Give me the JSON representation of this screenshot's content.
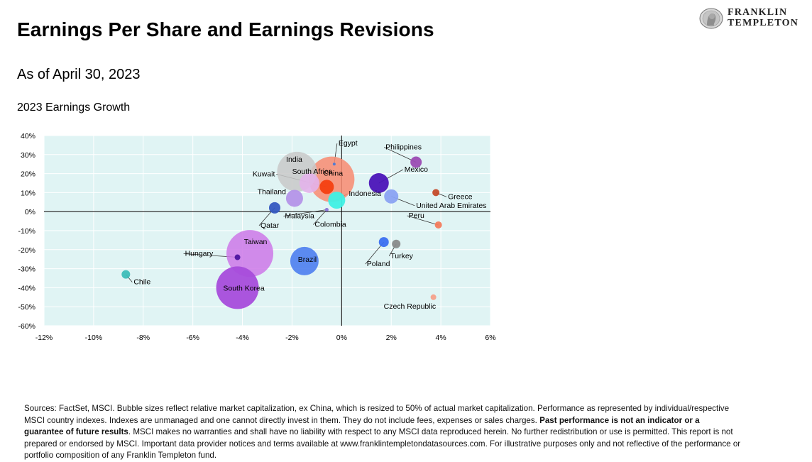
{
  "header": {
    "title": "Earnings Per Share and Earnings Revisions",
    "subtitle": "As of April 30, 2023",
    "logo_line1": "FRANKLIN",
    "logo_line2": "TEMPLETON"
  },
  "chart_data": {
    "type": "scatter",
    "title": "2023 Earnings Growth",
    "xlim": [
      -12,
      6
    ],
    "ylim": [
      -60,
      40
    ],
    "x_ticks": [
      "-12%",
      "-10%",
      "-8%",
      "-6%",
      "-4%",
      "-2%",
      "0%",
      "2%",
      "4%",
      "6%"
    ],
    "y_ticks": [
      "40%",
      "30%",
      "20%",
      "10%",
      "0%",
      "-10%",
      "-20%",
      "-30%",
      "-40%",
      "-50%",
      "-60%"
    ],
    "plot_background": "#e0f4f4",
    "points": [
      {
        "label": "China",
        "x": -0.4,
        "y": 17,
        "r": 32,
        "color": "#f88a70",
        "opacity": 0.85
      },
      {
        "label": "India",
        "x": -1.8,
        "y": 21,
        "r": 28,
        "color": "#c8c8c8",
        "opacity": 0.85
      },
      {
        "label": "Taiwan",
        "x": -3.7,
        "y": -22,
        "r": 33,
        "color": "#cc77e8",
        "opacity": 0.85
      },
      {
        "label": "South Korea",
        "x": -4.2,
        "y": -40,
        "r": 30,
        "color": "#a64cdb",
        "opacity": 0.95
      },
      {
        "label": "Brazil",
        "x": -1.5,
        "y": -26,
        "r": 20,
        "color": "#4d7ef0",
        "opacity": 0.9
      },
      {
        "label": "South Africa",
        "x": -1.3,
        "y": 15,
        "r": 14,
        "color": "#e3b3ea",
        "opacity": 0.9
      },
      {
        "label": "Mexico",
        "x": 1.5,
        "y": 15,
        "r": 14,
        "color": "#4b14b8",
        "opacity": 0.95
      },
      {
        "label": "Kuwait",
        "x": -0.6,
        "y": 13,
        "r": 10,
        "color": "#f43f10",
        "opacity": 0.95
      },
      {
        "label": "Thailand",
        "x": -1.9,
        "y": 7,
        "r": 12,
        "color": "#b494e8",
        "opacity": 0.95
      },
      {
        "label": "Indonesia",
        "x": -0.2,
        "y": 6,
        "r": 12,
        "color": "#3ef0e4",
        "opacity": 0.95
      },
      {
        "label": "United Arab Emirates",
        "x": 2.0,
        "y": 8,
        "r": 10,
        "color": "#8aa2f2",
        "opacity": 0.95
      },
      {
        "label": "Philippines",
        "x": 3.0,
        "y": 26,
        "r": 8,
        "color": "#9b4bb3",
        "opacity": 0.95
      },
      {
        "label": "Qatar",
        "x": -2.7,
        "y": 2,
        "r": 8,
        "color": "#3558c0",
        "opacity": 0.95
      },
      {
        "label": "Greece",
        "x": 3.8,
        "y": 10,
        "r": 5,
        "color": "#c44b2a",
        "opacity": 0.95
      },
      {
        "label": "Peru",
        "x": 3.9,
        "y": -7,
        "r": 5,
        "color": "#f37b5c",
        "opacity": 0.95
      },
      {
        "label": "Poland",
        "x": 1.7,
        "y": -16,
        "r": 7,
        "color": "#3b6ff0",
        "opacity": 0.95
      },
      {
        "label": "Turkey",
        "x": 2.2,
        "y": -17,
        "r": 6,
        "color": "#8a8a8a",
        "opacity": 0.95
      },
      {
        "label": "Chile",
        "x": -8.7,
        "y": -33,
        "r": 6,
        "color": "#3dbdb8",
        "opacity": 0.95
      },
      {
        "label": "Hungary",
        "x": -4.2,
        "y": -24,
        "r": 4,
        "color": "#4b14a0",
        "opacity": 0.95
      },
      {
        "label": "Czech Republic",
        "x": 3.7,
        "y": -45,
        "r": 4,
        "color": "#f4a08a",
        "opacity": 0.95
      },
      {
        "label": "Egypt",
        "x": -0.3,
        "y": 25,
        "r": 2,
        "color": "#4a7bd6",
        "opacity": 0.95
      },
      {
        "label": "Malaysia",
        "x": -0.6,
        "y": 1,
        "r": 2.5,
        "color": "#8f7bd8",
        "opacity": 0.95
      },
      {
        "label": "Colombia",
        "x": -0.6,
        "y": 1,
        "r": 2.5,
        "color": "#8f7bd8",
        "opacity": 0.95
      }
    ]
  },
  "footnote": {
    "part1": "Sources: FactSet, MSCI. Bubble sizes reflect relative market capitalization, ex China, which is resized to 50% of actual market capitalization. Performance as represented by individual/respective MSCI country indexes. Indexes are unmanaged and one cannot directly invest in them. They do not include fees, expenses or sales charges. ",
    "bold": "Past performance is not an indicator or a guarantee of future results",
    "part2": ". MSCI makes no warranties and shall have no liability with respect to any MSCI data reproduced herein. No further redistribution or use is permitted. This report is not prepared or endorsed by MSCI. Important data provider notices and terms available at www.franklintempletondatasources.com. For illustrative purposes only and not reflective of the performance or portfolio composition of any Franklin Templeton fund."
  }
}
